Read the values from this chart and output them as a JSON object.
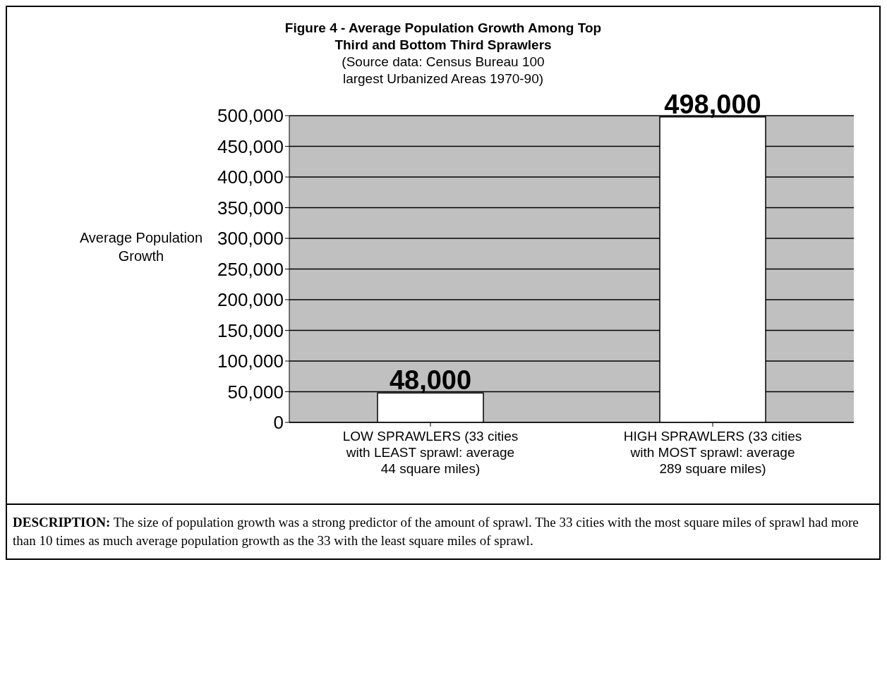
{
  "chart_data": {
    "type": "bar",
    "title": "Figure 4 - Average Population Growth Among Top Third and Bottom Third Sprawlers",
    "subtitle": "(Source data: Census Bureau 100 largest Urbanized Areas 1970-90)",
    "ylabel": "Average Population Growth",
    "categories": [
      "LOW SPRAWLERS (33 cities with LEAST sprawl: average  44 square miles)",
      "HIGH  SPRAWLERS (33 cities with MOST sprawl: average 289 square miles)"
    ],
    "values": [
      48000,
      498000
    ],
    "value_labels": [
      "48,000",
      "498,000"
    ],
    "color": "#ffffff",
    "ylim": [
      0,
      500000
    ],
    "yticks": [
      0,
      {
        "value": 50000,
        "label": "50,000"
      },
      {
        "value": 100000,
        "label": "100,000"
      },
      {
        "value": 150000,
        "label": "150,000"
      },
      {
        "value": 200000,
        "label": "200,000"
      },
      {
        "value": 250000,
        "label": "250,000"
      },
      {
        "value": 300000,
        "label": "300,000"
      },
      {
        "value": 350000,
        "label": "350,000"
      },
      {
        "value": 400000,
        "label": "400,000"
      },
      {
        "value": 450000,
        "label": "450,000"
      },
      {
        "value": 500000,
        "label": "500,000"
      }
    ],
    "grid": "y",
    "legend": false,
    "annotations": [
      "DESCRIPTION:  The size of population growth was a strong predictor of the amount of sprawl.  The 33 cities with the most square miles of sprawl had more than 10 times as much average population growth as the 33 with the least square miles of sprawl."
    ]
  }
}
